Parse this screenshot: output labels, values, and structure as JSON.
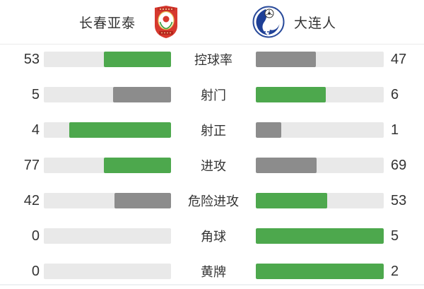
{
  "header": {
    "home_name": "长春亚泰",
    "away_name": "大连人",
    "home_crest": "red-shield-crest",
    "away_crest": "blue-circle-soccer-crest"
  },
  "colors": {
    "green": "#4DA84D",
    "gray": "#8C8C8C",
    "track": "#E9E9E9",
    "text": "#333333",
    "divider": "#EBEBEB"
  },
  "chart_data": {
    "type": "bar",
    "orientation": "horizontal",
    "layout": "head-to-head paired bars; fill width = value share of row total; higher value green, lower value gray, zero value = empty track; legend is the two team crests in the header",
    "categories": [
      "控球率",
      "射门",
      "射正",
      "进攻",
      "危险进攻",
      "角球",
      "黄牌"
    ],
    "series": [
      {
        "name": "长春亚泰",
        "side": "left",
        "values": [
          53,
          5,
          4,
          77,
          42,
          0,
          0
        ]
      },
      {
        "name": "大连人",
        "side": "right",
        "values": [
          47,
          6,
          1,
          69,
          53,
          5,
          2
        ]
      }
    ]
  }
}
